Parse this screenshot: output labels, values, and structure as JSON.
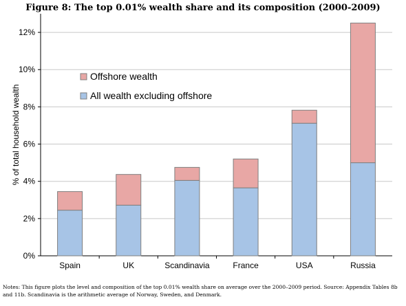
{
  "figure_title": "Figure 8: The top 0.01% wealth share and its composition (2000-2009)",
  "notes": "Notes: This figure plots the level and composition of the top 0.01% wealth share on average over the 2000–2009 period. Source: Appendix Tables 8b and 11b. Scandinavia is the arithmetic average of Norway, Sweden, and Denmark.",
  "chart_data": {
    "type": "bar",
    "stacked": true,
    "title": "Figure 8: The top 0.01% wealth share and its composition (2000-2009)",
    "xlabel": "",
    "ylabel": "% of total household wealth",
    "categories": [
      "Spain",
      "UK",
      "Scandinavia",
      "France",
      "USA",
      "Russia"
    ],
    "series": [
      {
        "name": "All wealth excluding offshore",
        "color": "#a7c4e6",
        "values": [
          2.45,
          2.72,
          4.05,
          3.65,
          7.12,
          5.0
        ]
      },
      {
        "name": "Offshore wealth",
        "color": "#e8a7a5",
        "values": [
          1.0,
          1.65,
          0.7,
          1.55,
          0.7,
          7.5
        ]
      }
    ],
    "legend_order": [
      "Offshore wealth",
      "All wealth excluding offshore"
    ],
    "legend_position": "top-left",
    "ylim": [
      0,
      13
    ],
    "yticks": [
      0,
      2,
      4,
      6,
      8,
      10,
      12
    ],
    "ytick_labels": [
      "0%",
      "2%",
      "4%",
      "6%",
      "8%",
      "10%",
      "12%"
    ],
    "grid": true
  }
}
